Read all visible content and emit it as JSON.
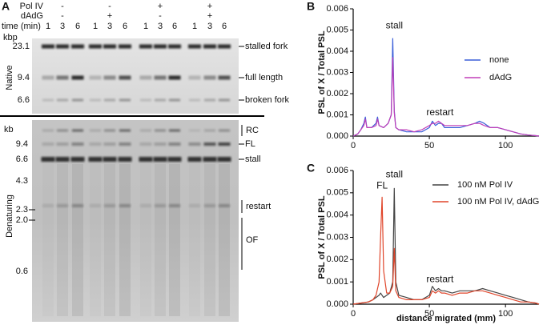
{
  "panel_a": {
    "label": "A",
    "conditions": [
      {
        "name": "Pol IV",
        "values": [
          "-",
          "-",
          "+",
          "+"
        ]
      },
      {
        "name": "dAdG",
        "values": [
          "-",
          "+",
          "-",
          "+"
        ]
      }
    ],
    "time_label": "time (min)",
    "times": [
      "1",
      "3",
      "6",
      "1",
      "3",
      "6",
      "1",
      "3",
      "6",
      "1",
      "3",
      "6"
    ],
    "native": {
      "title": "Native",
      "unit": "kbp",
      "markers": [
        "23.1",
        "9.4",
        "6.6"
      ],
      "bands": [
        "stalled fork",
        "full length",
        "broken fork"
      ]
    },
    "denaturing": {
      "title": "Denaturing",
      "unit": "kb",
      "markers": [
        "9.4",
        "6.6",
        "4.3",
        "2.3",
        "2.0",
        "0.6"
      ],
      "bands": [
        "RC",
        "FL",
        "stall",
        "restart",
        "OF"
      ]
    }
  },
  "chart_data": [
    {
      "type": "line",
      "label": "B",
      "ylabel": "PSL of X / Total PSL",
      "annotations": [
        "stall",
        "restart"
      ],
      "xlim": [
        0,
        122
      ],
      "xticks": [
        0,
        50,
        100
      ],
      "ylim": [
        0,
        0.006
      ],
      "yticks": [
        {
          "value": 0,
          "label": "0.000"
        },
        {
          "value": 0.001,
          "label": "0.001"
        },
        {
          "value": 0.002,
          "label": "0.002"
        },
        {
          "value": 0.003,
          "label": "0.003"
        },
        {
          "value": 0.004,
          "label": "0.004"
        },
        {
          "value": 0.005,
          "label": "0.005"
        },
        {
          "value": 0.006,
          "label": "0.006"
        }
      ],
      "x": [
        0,
        3,
        5,
        7,
        8,
        9,
        12,
        15,
        16,
        17,
        20,
        23,
        25,
        26,
        27,
        28,
        30,
        35,
        40,
        45,
        50,
        52,
        54,
        56,
        58,
        60,
        65,
        70,
        75,
        80,
        83,
        86,
        90,
        95,
        100,
        105,
        110,
        115,
        120,
        122
      ],
      "series": [
        {
          "name": "none",
          "color": "#3a5fd9",
          "values": [
            0,
            0.0001,
            0.0003,
            0.0006,
            0.0009,
            0.0004,
            0.0004,
            0.0006,
            0.0009,
            0.0005,
            0.0004,
            0.0006,
            0.001,
            0.0046,
            0.0012,
            0.0004,
            0.0003,
            0.0002,
            0.0002,
            0.0002,
            0.0004,
            0.0007,
            0.0005,
            0.0006,
            0.0006,
            0.0004,
            0.0004,
            0.0004,
            0.0005,
            0.0006,
            0.0007,
            0.0006,
            0.0004,
            0.0004,
            0.0003,
            0.0002,
            0.0001,
            5e-05,
            2e-05,
            0
          ]
        },
        {
          "name": "dAdG",
          "color": "#c03fb8",
          "values": [
            0,
            0.0001,
            0.0003,
            0.0005,
            0.0008,
            0.0004,
            0.0004,
            0.0005,
            0.0008,
            0.0005,
            0.0004,
            0.0006,
            0.001,
            0.0037,
            0.0011,
            0.0004,
            0.0003,
            0.0003,
            0.0002,
            0.0003,
            0.0005,
            0.0006,
            0.0006,
            0.0007,
            0.0006,
            0.0005,
            0.0005,
            0.0005,
            0.0005,
            0.0006,
            0.0006,
            0.0005,
            0.0004,
            0.0004,
            0.0003,
            0.0002,
            0.0001,
            5e-05,
            2e-05,
            0
          ]
        }
      ]
    },
    {
      "type": "line",
      "label": "C",
      "ylabel": "PSL of X / Total PSL",
      "xlabel": "distance migrated (mm)",
      "annotations": [
        "FL",
        "stall",
        "restart"
      ],
      "xlim": [
        0,
        122
      ],
      "xticks": [
        0,
        50,
        100
      ],
      "ylim": [
        0,
        0.006
      ],
      "yticks": [
        {
          "value": 0,
          "label": "0.000"
        },
        {
          "value": 0.001,
          "label": "0.001"
        },
        {
          "value": 0.002,
          "label": "0.002"
        },
        {
          "value": 0.003,
          "label": "0.003"
        },
        {
          "value": 0.004,
          "label": "0.004"
        },
        {
          "value": 0.005,
          "label": "0.005"
        },
        {
          "value": 0.006,
          "label": "0.006"
        }
      ],
      "x": [
        0,
        5,
        10,
        13,
        15,
        17,
        18,
        19,
        20,
        22,
        24,
        26,
        27,
        28,
        30,
        35,
        40,
        45,
        50,
        52,
        54,
        56,
        58,
        60,
        65,
        70,
        75,
        80,
        85,
        90,
        95,
        100,
        105,
        110,
        115,
        120,
        122
      ],
      "series": [
        {
          "name": "100 nM Pol IV",
          "color": "#444444",
          "values": [
            0,
            5e-05,
            0.0001,
            0.0002,
            0.0003,
            0.0004,
            0.0005,
            0.0004,
            0.0003,
            0.0004,
            0.0005,
            0.001,
            0.0052,
            0.001,
            0.0004,
            0.0003,
            0.0002,
            0.0002,
            0.0004,
            0.0008,
            0.0006,
            0.0007,
            0.0006,
            0.0006,
            0.0005,
            0.0006,
            0.0006,
            0.0006,
            0.0007,
            0.0006,
            0.0005,
            0.0004,
            0.0003,
            0.0002,
            0.0001,
            5e-05,
            0
          ]
        },
        {
          "name": "100 nM Pol IV, dAdG",
          "color": "#e0452a",
          "values": [
            0,
            5e-05,
            0.0001,
            0.0002,
            0.0004,
            0.001,
            0.003,
            0.0048,
            0.0015,
            0.0005,
            0.0005,
            0.0008,
            0.0025,
            0.0006,
            0.0003,
            0.0002,
            0.0002,
            0.0002,
            0.0003,
            0.0006,
            0.0005,
            0.0006,
            0.0005,
            0.0005,
            0.0004,
            0.0005,
            0.0005,
            0.0006,
            0.0006,
            0.0005,
            0.0004,
            0.0003,
            0.0002,
            0.0001,
            0.0001,
            5e-05,
            0
          ]
        }
      ]
    }
  ]
}
